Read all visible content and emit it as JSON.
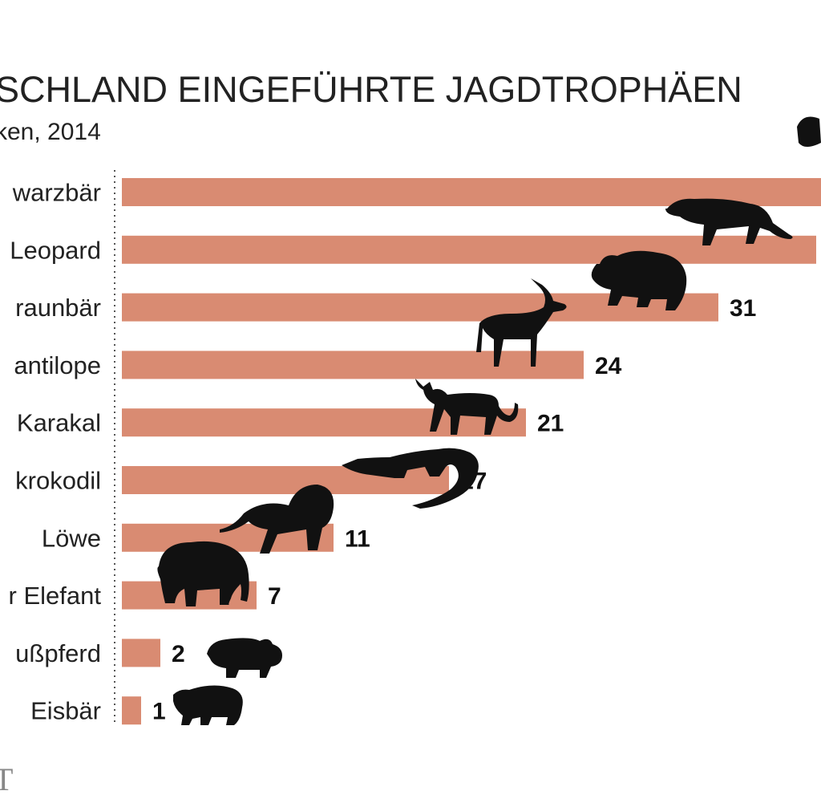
{
  "chart_data": {
    "type": "bar",
    "orientation": "horizontal",
    "title": "SCHLAND EINGEFÜHRTE JAGDTROPHÄEN",
    "subtitle": "ken, 2014",
    "categories": [
      "warzbär",
      "Leopard",
      "raunbär",
      "antilope",
      "Karakal",
      "krokodil",
      "Löwe",
      "r Elefant",
      "ußpferd",
      "Eisbär"
    ],
    "values": [
      null,
      null,
      31,
      24,
      21,
      17,
      11,
      7,
      2,
      1
    ],
    "value_labels": [
      "",
      "",
      "31",
      "24",
      "21",
      "17",
      "11",
      "7",
      "2",
      "1"
    ],
    "icons": [
      "bear-icon",
      "leopard-icon",
      "brown-bear-icon",
      "antelope-icon",
      "caracal-icon",
      "crocodile-icon",
      "lion-icon",
      "elephant-icon",
      "hippo-icon",
      "polar-bear-icon"
    ],
    "bar_color": "#d98b72",
    "grid": false,
    "legend": "none"
  },
  "footer_mark": "T"
}
